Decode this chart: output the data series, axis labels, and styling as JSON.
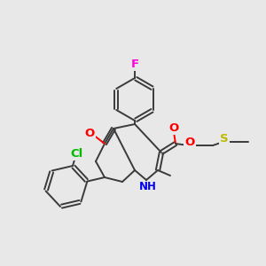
{
  "bg_color": "#e8e8e8",
  "bond_color": "#3a3a3a",
  "bond_width": 1.4,
  "atom_colors": {
    "F": "#ff00dd",
    "Cl": "#00bb00",
    "O": "#ff0000",
    "N": "#0000ee",
    "S": "#bbbb00",
    "C": "#3a3a3a"
  },
  "font_size": 8.5
}
